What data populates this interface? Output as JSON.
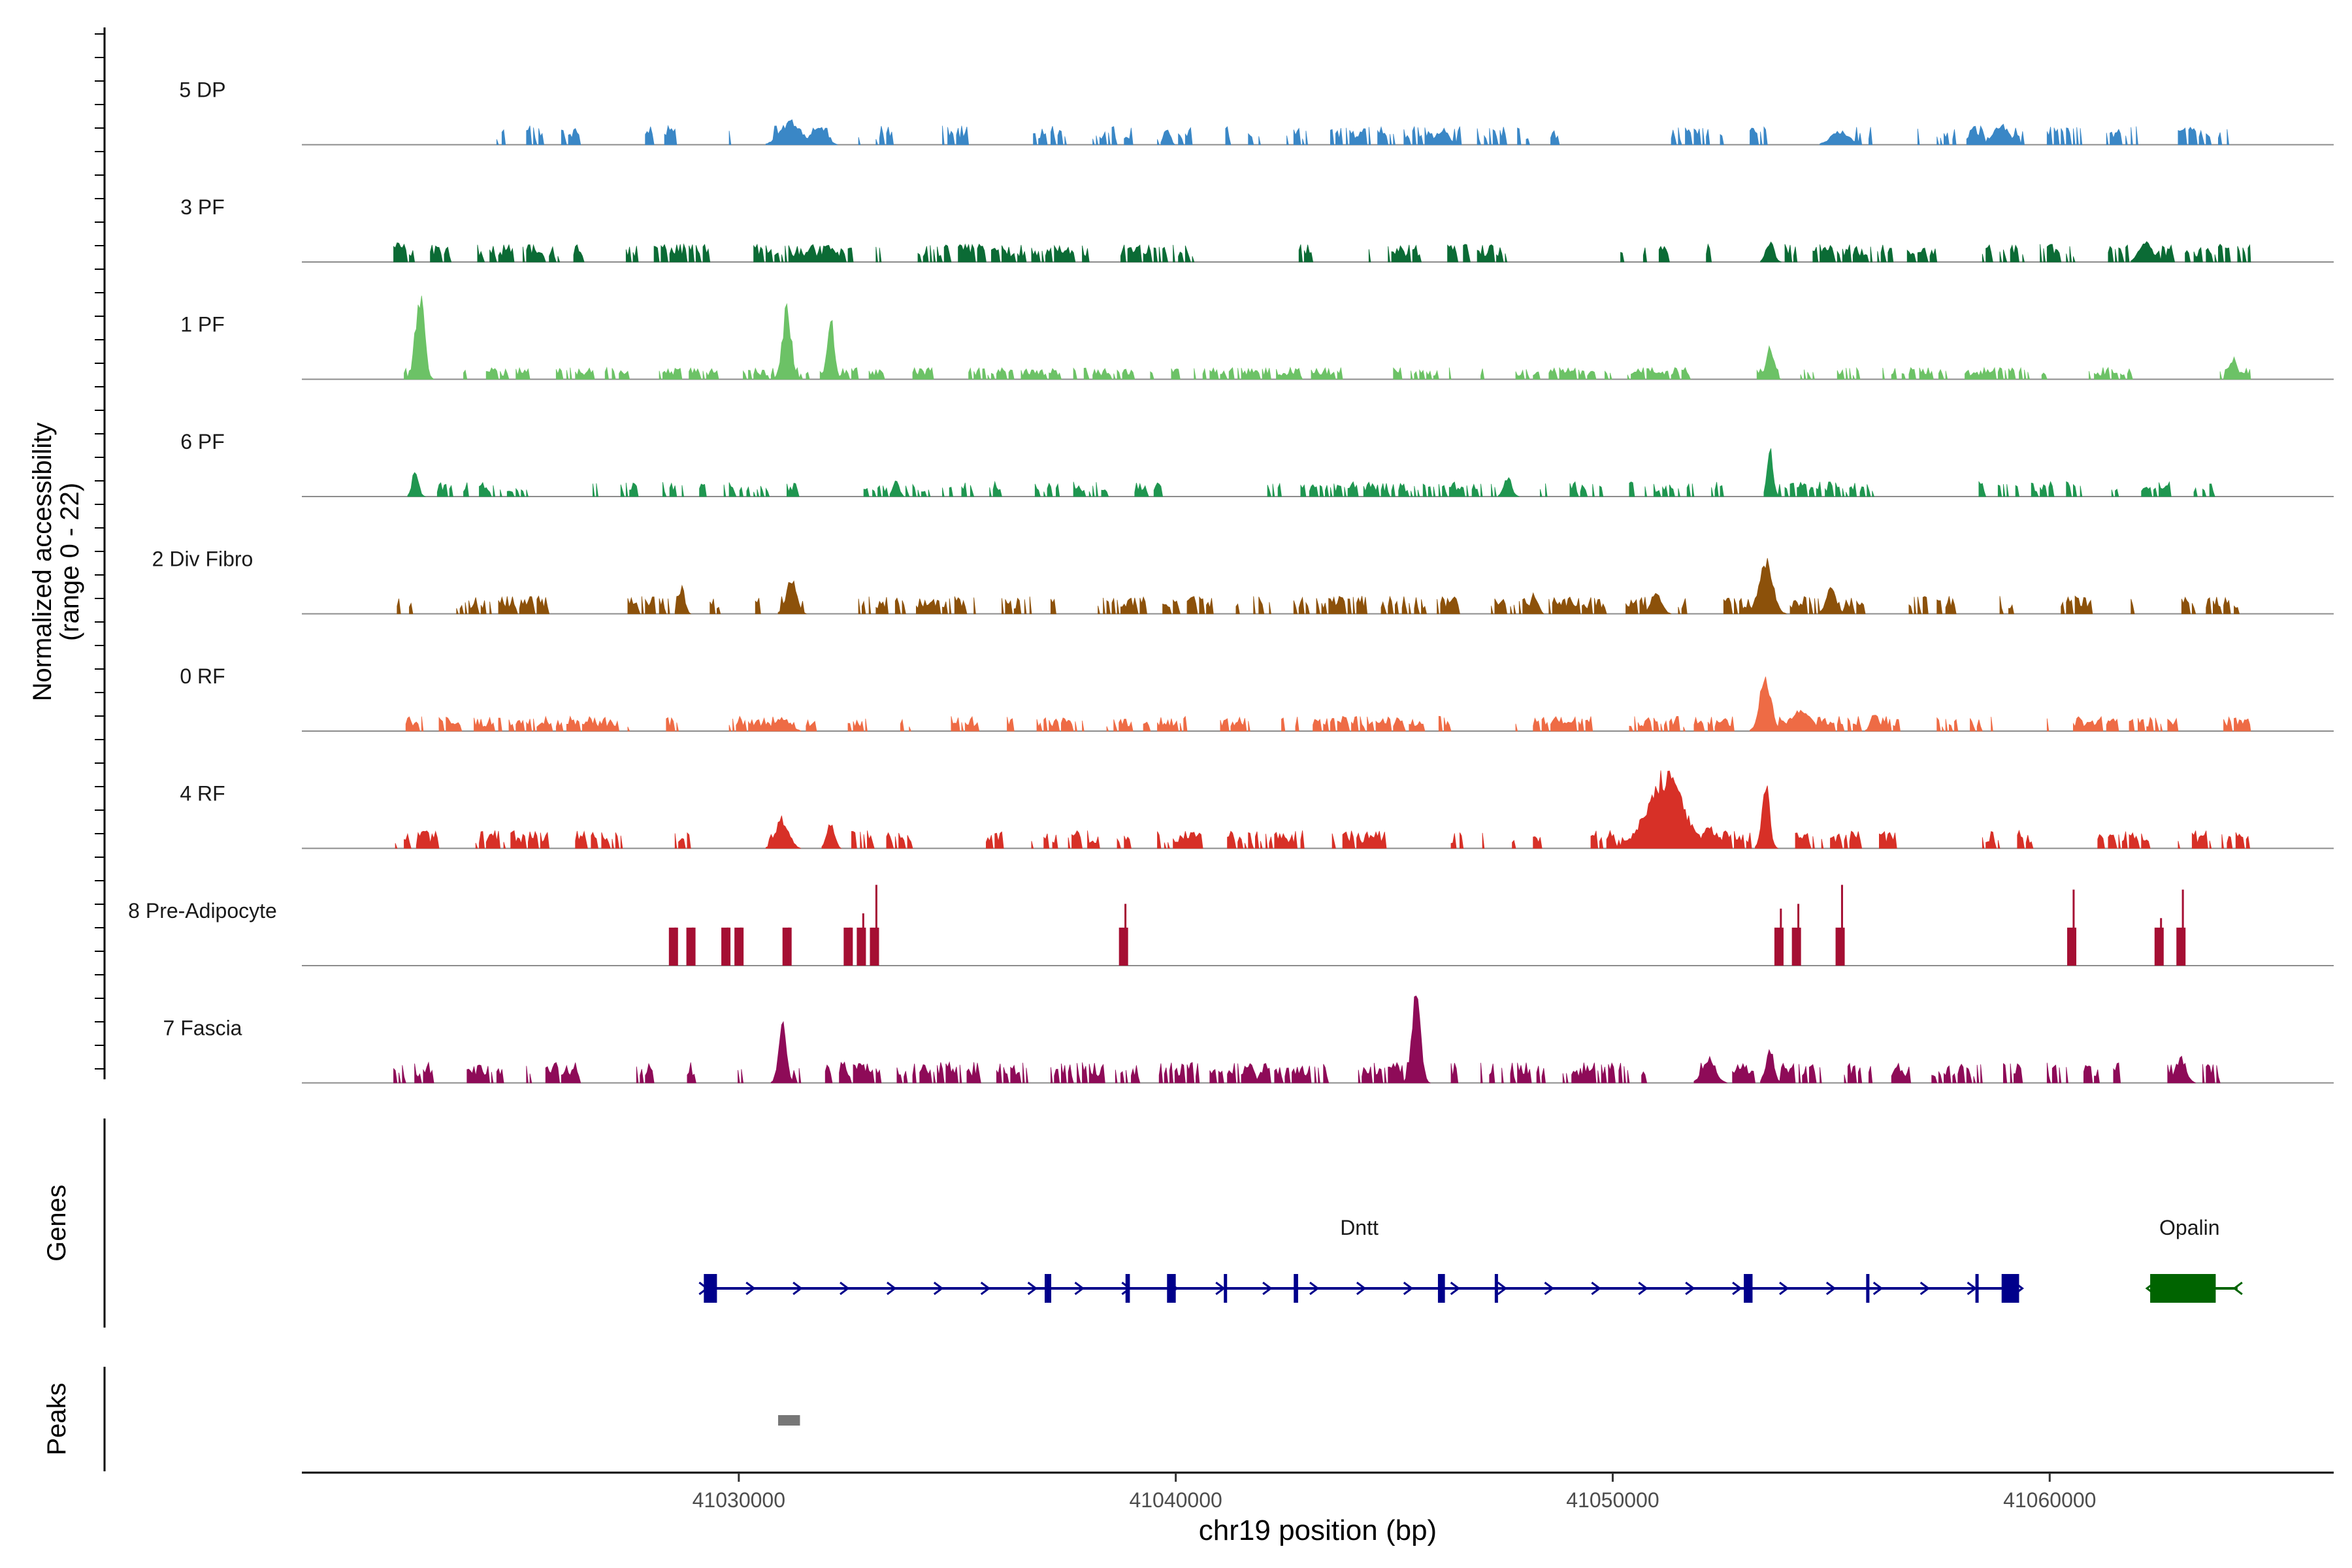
{
  "chart_data": {
    "type": "area",
    "y_axis_label": "Normalized accessibility",
    "y_axis_sublabel": "(range 0 - 22)",
    "y_range": [
      0,
      22
    ],
    "x_axis_label": "chr19 position (bp)",
    "x_range": [
      41020000,
      41066500
    ],
    "x_ticks": [
      {
        "value": 41030000,
        "label": "41030000"
      },
      {
        "value": 41040000,
        "label": "41040000"
      },
      {
        "value": 41050000,
        "label": "41050000"
      },
      {
        "value": 41060000,
        "label": "41060000"
      }
    ],
    "track_region": [
      41022100,
      41064600
    ],
    "tracks": [
      {
        "name": "5 DP",
        "color": "#3a87c6",
        "sparsity": 0.5,
        "baseline": 3.2,
        "peaks": [
          [
            41031200,
            5.5,
            400
          ],
          [
            41031800,
            4.2,
            300
          ],
          [
            41039800,
            4.3,
            120
          ],
          [
            41046100,
            3.5,
            250
          ],
          [
            41058900,
            4.6,
            300
          ],
          [
            41055200,
            3.2,
            350
          ]
        ]
      },
      {
        "name": "3 PF",
        "color": "#0b6b35",
        "sparsity": 0.25,
        "baseline": 3.0,
        "peaks": [
          [
            41022200,
            4.4,
            120
          ],
          [
            41053600,
            5.0,
            150
          ],
          [
            41062200,
            4.8,
            250
          ],
          [
            41032000,
            4.0,
            120
          ]
        ]
      },
      {
        "name": "1 PF",
        "color": "#6cc266",
        "sparsity": 0.25,
        "baseline": 2.0,
        "peaks": [
          [
            41022700,
            21.0,
            170
          ],
          [
            41031100,
            17.0,
            170
          ],
          [
            41032100,
            14.0,
            140
          ],
          [
            41053600,
            8.0,
            140
          ],
          [
            41064200,
            5.0,
            150
          ]
        ]
      },
      {
        "name": "6 PF",
        "color": "#1f9650",
        "sparsity": 0.55,
        "baseline": 2.5,
        "peaks": [
          [
            41022600,
            6.5,
            120
          ],
          [
            41053600,
            11.0,
            110
          ],
          [
            41033600,
            4.0,
            120
          ],
          [
            41047600,
            4.5,
            150
          ]
        ]
      },
      {
        "name": "2 Div Fibro",
        "color": "#8c510a",
        "sparsity": 0.35,
        "baseline": 3.0,
        "peaks": [
          [
            41053500,
            13.0,
            260
          ],
          [
            41031200,
            8.0,
            200
          ],
          [
            41028700,
            6.0,
            120
          ],
          [
            41055000,
            6.0,
            200
          ],
          [
            41051000,
            5.0,
            200
          ],
          [
            41048200,
            4.5,
            150
          ]
        ]
      },
      {
        "name": "0 RF",
        "color": "#ee6b45",
        "sparsity": 0.3,
        "baseline": 2.5,
        "peaks": [
          [
            41053500,
            13.0,
            220
          ],
          [
            41054300,
            5.0,
            400
          ],
          [
            41056000,
            4.5,
            150
          ],
          [
            41031000,
            3.0,
            300
          ]
        ]
      },
      {
        "name": "4 RF",
        "color": "#d73027",
        "sparsity": 0.25,
        "baseline": 3.0,
        "peaks": [
          [
            41051200,
            17.0,
            700
          ],
          [
            41053500,
            15.0,
            150
          ],
          [
            41031000,
            7.0,
            250
          ],
          [
            41032100,
            6.0,
            150
          ],
          [
            41052200,
            5.0,
            250
          ],
          [
            41022800,
            5.0,
            150
          ]
        ]
      },
      {
        "name": "8 Pre-Adipocyte",
        "color": "#a50f33",
        "sparsity": 1.0,
        "baseline": 0,
        "blocks": [
          [
            41028400,
            8.0
          ],
          [
            41028800,
            8.0
          ],
          [
            41029600,
            8.0
          ],
          [
            41029900,
            8.0
          ],
          [
            41031000,
            8.0
          ],
          [
            41032400,
            8.0
          ],
          [
            41032700,
            11.0
          ],
          [
            41033000,
            17.0
          ],
          [
            41038700,
            13.0
          ],
          [
            41053700,
            12.0
          ],
          [
            41054100,
            13.0
          ],
          [
            41055100,
            17.0
          ],
          [
            41060400,
            16.0
          ],
          [
            41062400,
            10.0
          ],
          [
            41062900,
            16.0
          ]
        ]
      },
      {
        "name": "7 Fascia",
        "color": "#8e0b58",
        "sparsity": 0.35,
        "baseline": 3.5,
        "peaks": [
          [
            41045500,
            21.0,
            170
          ],
          [
            41031000,
            14.0,
            150
          ],
          [
            41052200,
            6.0,
            250
          ],
          [
            41053600,
            8.0,
            150
          ],
          [
            41063000,
            6.0,
            200
          ],
          [
            41041700,
            5.0,
            150
          ]
        ]
      }
    ],
    "genes_panel": {
      "label": "Genes",
      "genes": [
        {
          "name": "Dntt",
          "start": 41029200,
          "end": 41059300,
          "strand": "+",
          "color": "#00008b",
          "exons": [
            [
              41029200,
              41029500
            ],
            [
              41037000,
              41037150
            ],
            [
              41038850,
              41038950
            ],
            [
              41039800,
              41040000
            ],
            [
              41041100,
              41041160
            ],
            [
              41042700,
              41042800
            ],
            [
              41046000,
              41046160
            ],
            [
              41047300,
              41047360
            ],
            [
              41053000,
              41053200
            ],
            [
              41055800,
              41055860
            ],
            [
              41058300,
              41058360
            ],
            [
              41058900,
              41059300
            ]
          ]
        },
        {
          "name": "Opalin",
          "start": 41062300,
          "end": 41064300,
          "strand": "-",
          "color": "#006400",
          "exons": [
            [
              41062300,
              41063800
            ]
          ]
        }
      ]
    },
    "peaks_panel": {
      "label": "Peaks",
      "peaks": [
        [
          41030900,
          41031400
        ]
      ],
      "color": "#777777"
    }
  }
}
